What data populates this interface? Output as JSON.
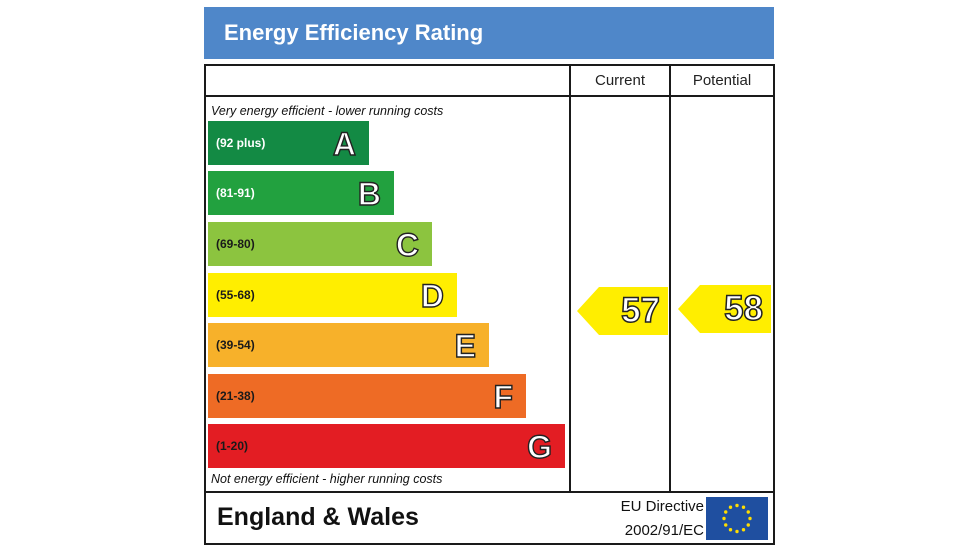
{
  "title": "Energy Efficiency Rating",
  "columns": {
    "current": "Current",
    "potential": "Potential"
  },
  "notes": {
    "top": "Very energy efficient - lower running costs",
    "bottom": "Not energy efficient - higher running costs"
  },
  "footer": {
    "region": "England & Wales",
    "directive_line1": "EU Directive",
    "directive_line2": "2002/91/EC"
  },
  "chart_data": {
    "type": "bar",
    "title": "Energy Efficiency Rating",
    "bands": [
      {
        "letter": "A",
        "range": "(92 plus)",
        "color": "#138a44",
        "text_color": "#ffffff"
      },
      {
        "letter": "B",
        "range": "(81-91)",
        "color": "#22a13f",
        "text_color": "#ffffff"
      },
      {
        "letter": "C",
        "range": "(69-80)",
        "color": "#8cc43f",
        "text_color": "#1a1a1a"
      },
      {
        "letter": "D",
        "range": "(55-68)",
        "color": "#ffee00",
        "text_color": "#1a1a1a"
      },
      {
        "letter": "E",
        "range": "(39-54)",
        "color": "#f7b12a",
        "text_color": "#1a1a1a"
      },
      {
        "letter": "F",
        "range": "(21-38)",
        "color": "#ee6b25",
        "text_color": "#1a1a1a"
      },
      {
        "letter": "G",
        "range": "(1-20)",
        "color": "#e31d23",
        "text_color": "#1a1a1a"
      }
    ],
    "current": {
      "value": 57,
      "band": "D",
      "color": "#ffee00"
    },
    "potential": {
      "value": 58,
      "band": "D",
      "color": "#ffee00"
    }
  }
}
